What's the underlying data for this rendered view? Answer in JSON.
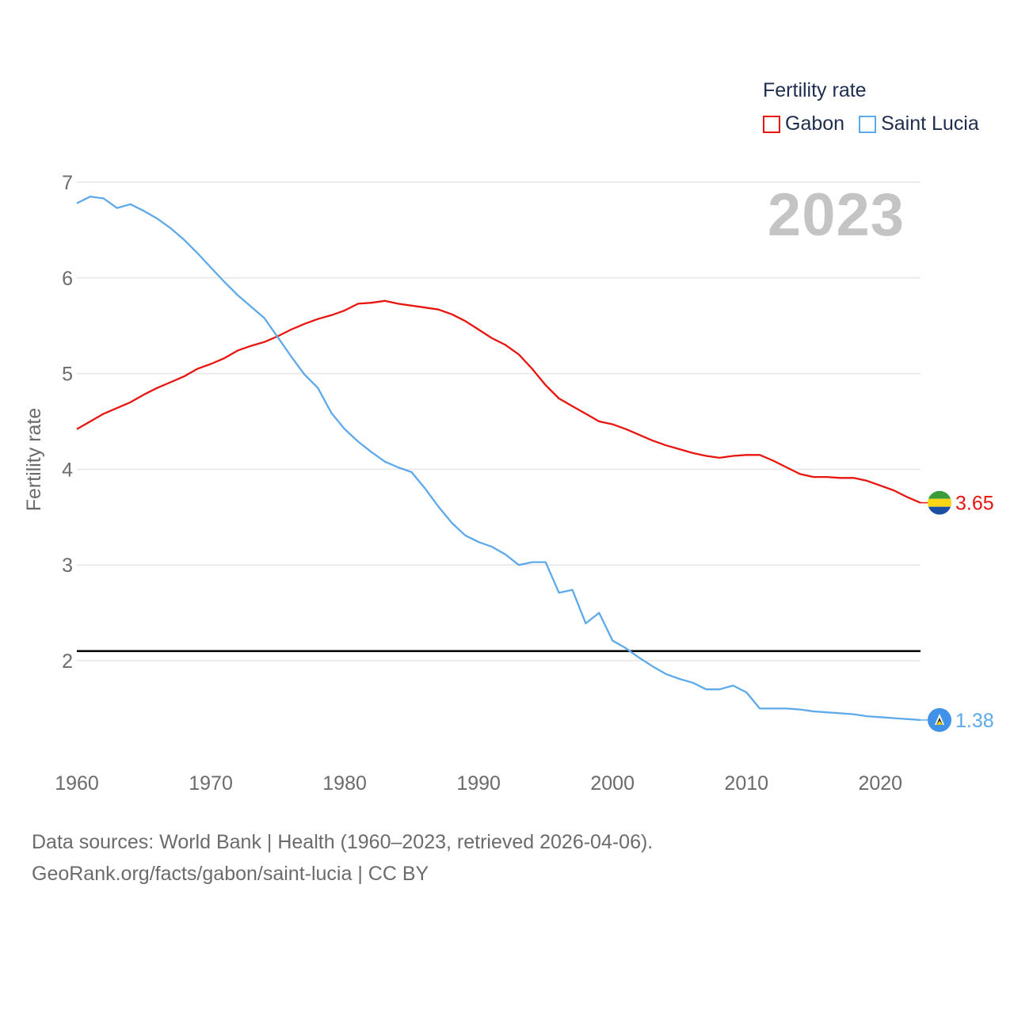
{
  "legend": {
    "title": "Fertility rate",
    "items": [
      {
        "name": "Gabon",
        "color": "#e8150f"
      },
      {
        "name": "Saint Lucia",
        "color": "#5ea9ea"
      }
    ]
  },
  "year_label": "2023",
  "source": {
    "line1": "Data sources: World Bank | Health (1960–2023, retrieved 2026-04-06).",
    "line2": "GeoRank.org/facts/gabon/saint-lucia | CC BY"
  },
  "chart_data": {
    "type": "line",
    "title": "",
    "xlabel": "",
    "ylabel": "Fertility rate",
    "xlim": [
      1960,
      2023
    ],
    "ylim": [
      1,
      7
    ],
    "x_ticks": [
      1960,
      1970,
      1980,
      1990,
      2000,
      2010,
      2020
    ],
    "y_ticks": [
      2,
      3,
      4,
      5,
      6,
      7
    ],
    "reference_line": {
      "y": 2.1,
      "color": "#000000"
    },
    "x": [
      1960,
      1961,
      1962,
      1963,
      1964,
      1965,
      1966,
      1967,
      1968,
      1969,
      1970,
      1971,
      1972,
      1973,
      1974,
      1975,
      1976,
      1977,
      1978,
      1979,
      1980,
      1981,
      1982,
      1983,
      1984,
      1985,
      1986,
      1987,
      1988,
      1989,
      1990,
      1991,
      1992,
      1993,
      1994,
      1995,
      1996,
      1997,
      1998,
      1999,
      2000,
      2001,
      2002,
      2003,
      2004,
      2005,
      2006,
      2007,
      2008,
      2009,
      2010,
      2011,
      2012,
      2013,
      2014,
      2015,
      2016,
      2017,
      2018,
      2019,
      2020,
      2021,
      2022,
      2023
    ],
    "series": [
      {
        "name": "Gabon",
        "color": "#e8150f",
        "end_label": "3.65",
        "values": [
          4.42,
          4.5,
          4.58,
          4.64,
          4.7,
          4.78,
          4.85,
          4.91,
          4.97,
          5.05,
          5.1,
          5.16,
          5.24,
          5.29,
          5.33,
          5.39,
          5.46,
          5.52,
          5.57,
          5.61,
          5.66,
          5.73,
          5.74,
          5.76,
          5.73,
          5.71,
          5.69,
          5.67,
          5.62,
          5.55,
          5.46,
          5.37,
          5.3,
          5.2,
          5.05,
          4.88,
          4.74,
          4.66,
          4.58,
          4.5,
          4.47,
          4.42,
          4.36,
          4.3,
          4.25,
          4.21,
          4.17,
          4.14,
          4.12,
          4.14,
          4.15,
          4.15,
          4.09,
          4.02,
          3.95,
          3.92,
          3.92,
          3.91,
          3.91,
          3.88,
          3.83,
          3.78,
          3.71,
          3.65
        ]
      },
      {
        "name": "Saint Lucia",
        "color": "#5ea9ea",
        "end_label": "1.38",
        "values": [
          6.78,
          6.85,
          6.83,
          6.73,
          6.77,
          6.7,
          6.62,
          6.52,
          6.4,
          6.26,
          6.11,
          5.96,
          5.82,
          5.7,
          5.58,
          5.38,
          5.18,
          4.99,
          4.85,
          4.59,
          4.42,
          4.29,
          4.18,
          4.08,
          4.02,
          3.97,
          3.8,
          3.61,
          3.44,
          3.31,
          3.24,
          3.19,
          3.11,
          3.0,
          3.03,
          3.03,
          2.71,
          2.74,
          2.39,
          2.5,
          2.21,
          2.13,
          2.03,
          1.94,
          1.86,
          1.81,
          1.77,
          1.7,
          1.7,
          1.74,
          1.67,
          1.5,
          1.5,
          1.5,
          1.49,
          1.47,
          1.46,
          1.45,
          1.44,
          1.42,
          1.41,
          1.4,
          1.39,
          1.38
        ]
      }
    ]
  }
}
